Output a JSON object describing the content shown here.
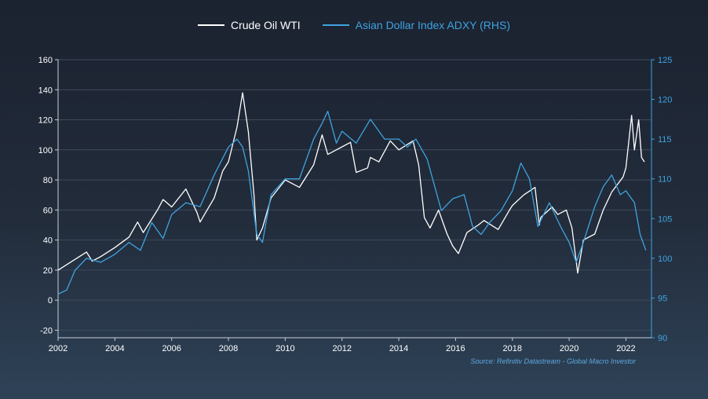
{
  "legend": [
    {
      "label": "Crude Oil WTI",
      "color": "#ffffff"
    },
    {
      "label": "Asian Dollar Index ADXY (RHS)",
      "color": "#3fa3e0"
    }
  ],
  "source_text": "Source: Refinitiv Datastream - Global Macro Investor",
  "colors": {
    "background_top": "#1b2230",
    "background_bottom": "#2e4257",
    "grid": "#3e4a5c",
    "oil": "#ffffff",
    "adxy": "#3fa3e0"
  },
  "chart_data": {
    "type": "line",
    "title": "",
    "xlabel": "",
    "ylabel": "",
    "xlim": [
      2002,
      2022.9
    ],
    "ylim_left": [
      -25,
      160
    ],
    "ylim_right": [
      90,
      125
    ],
    "grid": true,
    "legend_position": "top-center",
    "x_ticks": [
      "2002",
      "2004",
      "2006",
      "2008",
      "2010",
      "2012",
      "2014",
      "2016",
      "2018",
      "2020",
      "2022"
    ],
    "y_ticks_left": [
      "-20",
      "0",
      "20",
      "40",
      "60",
      "80",
      "100",
      "120",
      "140",
      "160"
    ],
    "y_ticks_right": [
      "90",
      "95",
      "100",
      "105",
      "110",
      "115",
      "120",
      "125"
    ],
    "series": [
      {
        "name": "Crude Oil WTI",
        "axis": "left",
        "color": "#ffffff",
        "x": [
          2002.0,
          2002.5,
          2003.0,
          2003.2,
          2003.5,
          2004.0,
          2004.5,
          2004.8,
          2005.0,
          2005.5,
          2005.7,
          2006.0,
          2006.5,
          2006.9,
          2007.0,
          2007.5,
          2007.8,
          2008.0,
          2008.3,
          2008.5,
          2008.7,
          2008.9,
          2009.0,
          2009.2,
          2009.5,
          2010.0,
          2010.5,
          2011.0,
          2011.3,
          2011.5,
          2011.8,
          2012.0,
          2012.3,
          2012.5,
          2012.9,
          2013.0,
          2013.3,
          2013.7,
          2014.0,
          2014.5,
          2014.7,
          2014.9,
          2015.1,
          2015.4,
          2015.7,
          2015.9,
          2016.1,
          2016.4,
          2016.8,
          2017.0,
          2017.5,
          2017.9,
          2018.0,
          2018.4,
          2018.8,
          2018.95,
          2019.0,
          2019.4,
          2019.6,
          2019.9,
          2020.1,
          2020.3,
          2020.5,
          2020.9,
          2021.2,
          2021.5,
          2021.9,
          2022.0,
          2022.2,
          2022.3,
          2022.45,
          2022.55,
          2022.65
        ],
        "y": [
          20,
          26,
          32,
          26,
          29,
          35,
          42,
          52,
          45,
          60,
          67,
          62,
          74,
          58,
          52,
          68,
          86,
          92,
          115,
          138,
          112,
          70,
          40,
          48,
          68,
          80,
          75,
          90,
          110,
          97,
          100,
          102,
          105,
          85,
          88,
          95,
          92,
          106,
          100,
          106,
          90,
          55,
          48,
          60,
          44,
          36,
          31,
          45,
          50,
          53,
          47,
          60,
          63,
          70,
          75,
          50,
          55,
          62,
          57,
          60,
          48,
          18,
          40,
          44,
          60,
          72,
          82,
          88,
          123,
          100,
          120,
          95,
          92
        ]
      },
      {
        "name": "Asian Dollar Index ADXY (RHS)",
        "axis": "right",
        "color": "#3fa3e0",
        "x": [
          2002.0,
          2002.3,
          2002.6,
          2003.0,
          2003.5,
          2004.0,
          2004.5,
          2004.9,
          2005.3,
          2005.7,
          2006.0,
          2006.5,
          2007.0,
          2007.5,
          2008.0,
          2008.3,
          2008.5,
          2008.7,
          2009.0,
          2009.2,
          2009.5,
          2010.0,
          2010.5,
          2011.0,
          2011.3,
          2011.5,
          2011.8,
          2012.0,
          2012.5,
          2013.0,
          2013.5,
          2014.0,
          2014.3,
          2014.6,
          2015.0,
          2015.5,
          2015.9,
          2016.3,
          2016.6,
          2016.9,
          2017.2,
          2017.6,
          2018.0,
          2018.3,
          2018.6,
          2018.9,
          2019.3,
          2019.7,
          2020.0,
          2020.25,
          2020.5,
          2020.9,
          2021.2,
          2021.5,
          2021.8,
          2022.0,
          2022.3,
          2022.5,
          2022.7
        ],
        "y": [
          95.5,
          96,
          98.5,
          100,
          99.5,
          100.5,
          102,
          101,
          104.5,
          102.5,
          105.5,
          107,
          106.5,
          110.5,
          114,
          115,
          114,
          111,
          103,
          102,
          108,
          110,
          110,
          115,
          117,
          118.5,
          114.5,
          116,
          114.5,
          117.5,
          115,
          115,
          114,
          115,
          112.5,
          106,
          107.5,
          108,
          104,
          103,
          104.5,
          106,
          108.5,
          112,
          110,
          104,
          107,
          104,
          102,
          99.5,
          102,
          106.5,
          109,
          110.5,
          108,
          108.5,
          107,
          103,
          101
        ]
      }
    ]
  }
}
